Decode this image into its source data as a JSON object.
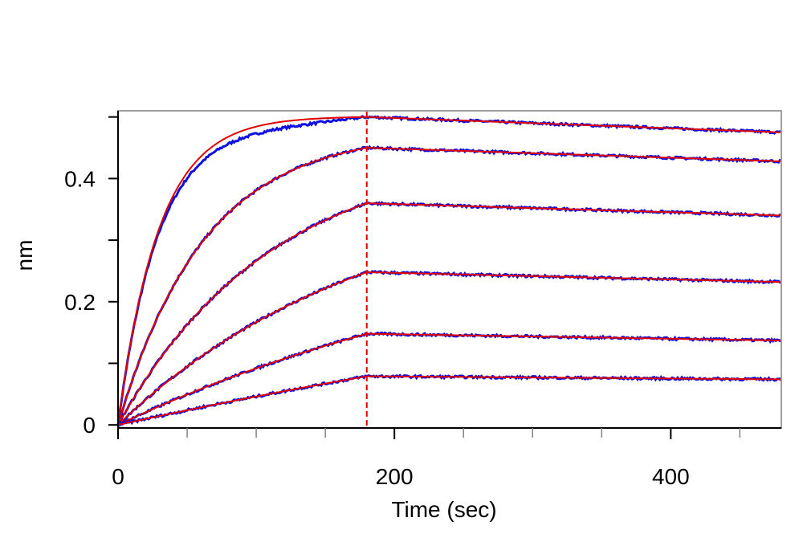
{
  "chart_data": {
    "type": "line",
    "xlabel": "Time (sec)",
    "ylabel": "nm",
    "xlim": [
      0,
      480
    ],
    "ylim": [
      -0.005,
      0.51
    ],
    "x_ticks": [
      0,
      200,
      400
    ],
    "x_tick_labels": [
      "0",
      "200",
      "400"
    ],
    "y_ticks": [
      0,
      0.2,
      0.4
    ],
    "y_tick_labels": [
      "0",
      "0.2",
      "0.4"
    ],
    "y_minor_ticks": [
      0.1,
      0.3,
      0.5
    ],
    "x_minor_ticks": [
      50,
      100,
      150,
      250,
      300,
      350,
      450
    ],
    "grid": false,
    "vertical_marker": {
      "x": 180,
      "style": "dashed",
      "color": "#e00000"
    },
    "colors": {
      "data": "#1010e0",
      "fit": "#e00000"
    },
    "association_end": 180,
    "series": [
      {
        "plateau": 0.5,
        "end": 0.475,
        "rate": 0.034
      },
      {
        "plateau": 0.45,
        "end": 0.428,
        "rate": 0.016
      },
      {
        "plateau": 0.36,
        "end": 0.34,
        "rate": 0.009
      },
      {
        "plateau": 0.248,
        "end": 0.232,
        "rate": 0.0055
      },
      {
        "plateau": 0.148,
        "end": 0.137,
        "rate": 0.003
      },
      {
        "plateau": 0.079,
        "end": 0.074,
        "rate": 0.0013
      }
    ]
  }
}
